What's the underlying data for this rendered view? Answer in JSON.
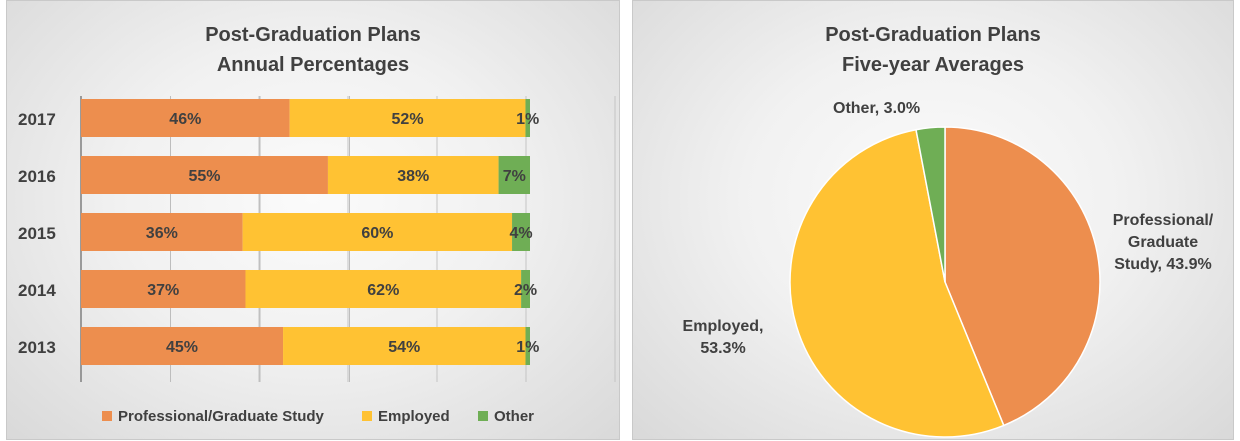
{
  "colors": {
    "professional": "#ED8E4E",
    "employed": "#FFC233",
    "other": "#6FAE55",
    "text": "#404040"
  },
  "chart_data": [
    {
      "type": "bar",
      "orientation": "horizontal",
      "stacked": true,
      "title_line1": "Post-Graduation Plans",
      "title_line2": "Annual Percentages",
      "categories": [
        "2017",
        "2016",
        "2015",
        "2014",
        "2013"
      ],
      "series": [
        {
          "name": "Professional/Graduate Study",
          "values": [
            46,
            55,
            36,
            37,
            45
          ]
        },
        {
          "name": "Employed",
          "values": [
            52,
            38,
            60,
            62,
            54
          ]
        },
        {
          "name": "Other",
          "values": [
            1,
            7,
            4,
            2,
            1
          ]
        }
      ],
      "legend": "bottom",
      "grid": true
    },
    {
      "type": "pie",
      "title_line1": "Post-Graduation Plans",
      "title_line2": "Five-year Averages",
      "slices": [
        {
          "name": "Professional/Graduate Study",
          "value": 43.9,
          "label_lines": [
            "Professional/",
            "Graduate",
            "Study, 43.9%"
          ]
        },
        {
          "name": "Employed",
          "value": 53.3,
          "label_lines": [
            "Employed,",
            "53.3%"
          ]
        },
        {
          "name": "Other",
          "value": 3.0,
          "label_lines": [
            "Other, 3.0%"
          ]
        }
      ]
    }
  ]
}
